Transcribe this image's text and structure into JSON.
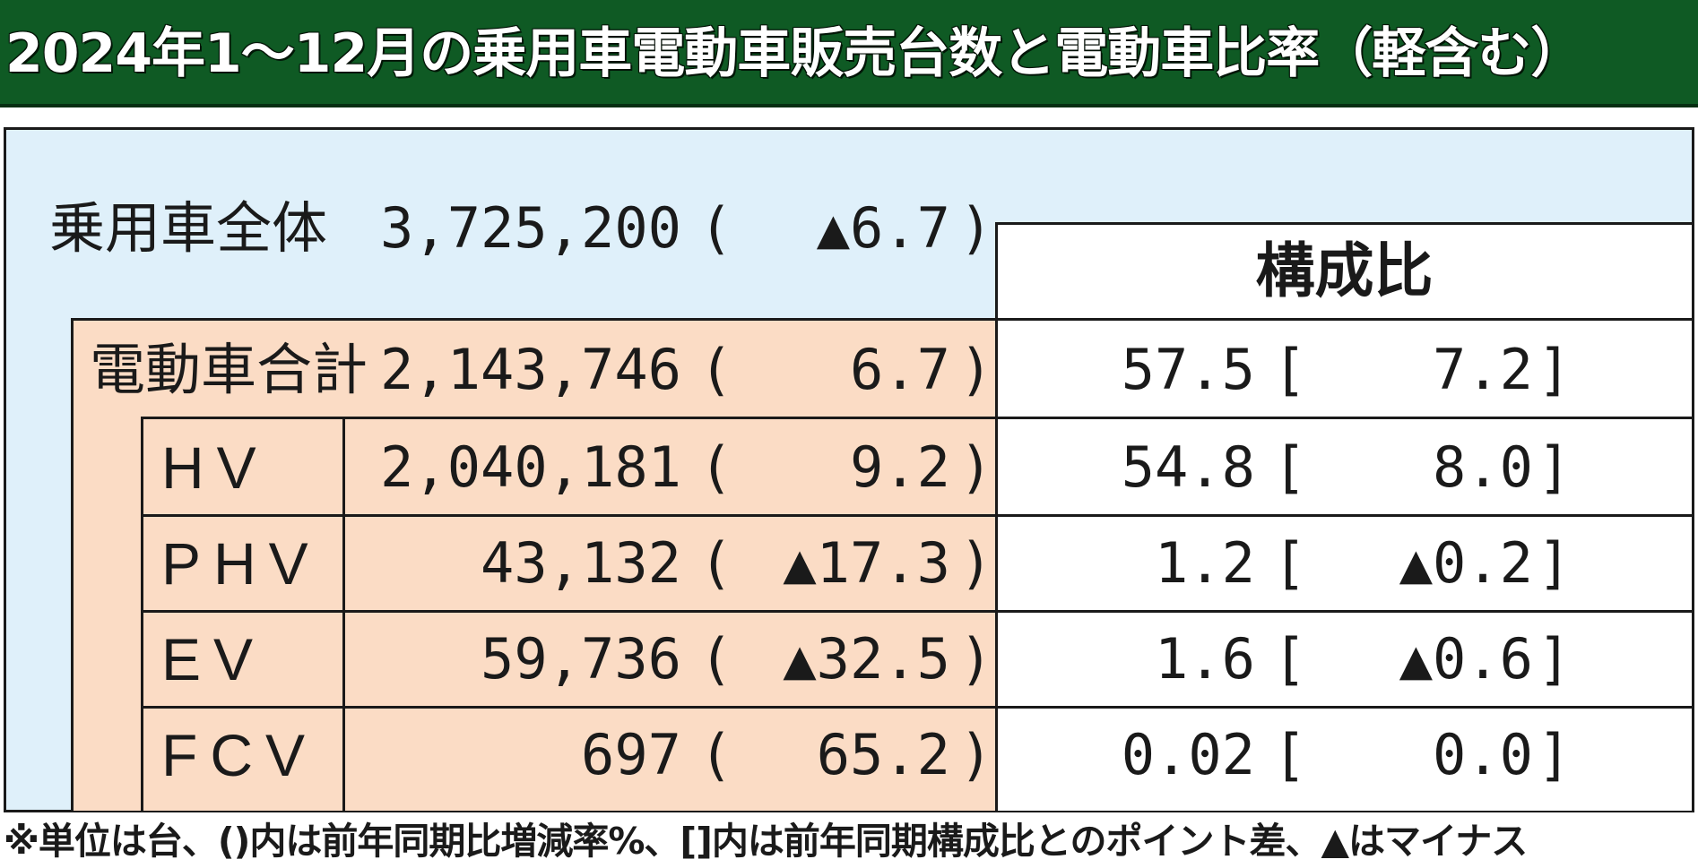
{
  "title": "2024年1～12月の乗用車電動車販売台数と電動車比率（軽含む）",
  "total": {
    "label": "乗用車全体",
    "units": "3,725,200",
    "open_paren": "(",
    "yoy": "▲6.7",
    "close_paren": ")"
  },
  "composition_header": "構成比",
  "rows": [
    {
      "label": "電動車合計",
      "units": "2,143,746",
      "open_paren": "(",
      "yoy": "6.7",
      "close_paren": ")",
      "share": "57.5",
      "open_bracket": "[",
      "share_change": "7.2",
      "close_bracket": "]"
    },
    {
      "label": "HV",
      "units": "2,040,181",
      "open_paren": "(",
      "yoy": "9.2",
      "close_paren": ")",
      "share": "54.8",
      "open_bracket": "[",
      "share_change": "8.0",
      "close_bracket": "]"
    },
    {
      "label": "PHV",
      "units": "43,132",
      "open_paren": "(",
      "yoy": "▲17.3",
      "close_paren": ")",
      "share": "1.2",
      "open_bracket": "[",
      "share_change": "▲0.2",
      "close_bracket": "]"
    },
    {
      "label": "EV",
      "units": "59,736",
      "open_paren": "(",
      "yoy": "▲32.5",
      "close_paren": ")",
      "share": "1.6",
      "open_bracket": "[",
      "share_change": "▲0.6",
      "close_bracket": "]"
    },
    {
      "label": "FCV",
      "units": "697",
      "open_paren": "(",
      "yoy": "65.2",
      "close_paren": ")",
      "share": "0.02",
      "open_bracket": "[",
      "share_change": "0.0",
      "close_bracket": "]"
    }
  ],
  "footnote": "※単位は台、()内は前年同期比増減率%、[]内は前年同期構成比とのポイント差、▲はマイナス",
  "colors": {
    "title_bg": "#0f5a24",
    "panel_bg": "#dff0fa",
    "ev_block_bg": "#fbdcc5",
    "composition_bg": "#ffffff"
  }
}
